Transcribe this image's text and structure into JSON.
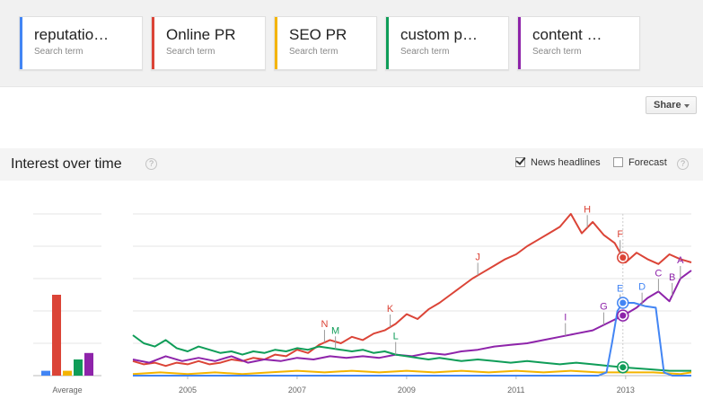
{
  "terms": [
    {
      "label": "reputatio…",
      "sub": "Search term",
      "color": "#4285f4"
    },
    {
      "label": "Online PR",
      "sub": "Search term",
      "color": "#db4437"
    },
    {
      "label": "SEO PR",
      "sub": "Search term",
      "color": "#f4b400"
    },
    {
      "label": "custom p…",
      "sub": "Search term",
      "color": "#0f9d58"
    },
    {
      "label": "content …",
      "sub": "Search term",
      "color": "#8e24aa"
    }
  ],
  "share": {
    "label": "Share"
  },
  "interest": {
    "title": "Interest over time",
    "help_glyph": "?",
    "news_headlines_label": "News headlines",
    "news_headlines_checked": true,
    "forecast_label": "Forecast",
    "forecast_checked": false
  },
  "chart_data": {
    "type": "line",
    "x_ticks": [
      2005,
      2007,
      2009,
      2011,
      2013
    ],
    "average_label": "Average",
    "ylim": [
      0,
      100
    ],
    "grid": true,
    "average_bars": [
      {
        "name": "reputatio…",
        "color": "#4285f4",
        "value": 3
      },
      {
        "name": "Online PR",
        "color": "#db4437",
        "value": 50
      },
      {
        "name": "SEO PR",
        "color": "#f4b400",
        "value": 3
      },
      {
        "name": "custom p…",
        "color": "#0f9d58",
        "value": 10
      },
      {
        "name": "content …",
        "color": "#8e24aa",
        "value": 14
      }
    ],
    "series": [
      {
        "name": "Online PR",
        "color": "#db4437",
        "points": [
          [
            2004.0,
            9
          ],
          [
            2004.2,
            7
          ],
          [
            2004.4,
            8
          ],
          [
            2004.6,
            6
          ],
          [
            2004.8,
            8
          ],
          [
            2005.0,
            7
          ],
          [
            2005.2,
            9
          ],
          [
            2005.4,
            7
          ],
          [
            2005.6,
            8
          ],
          [
            2005.8,
            10
          ],
          [
            2006.0,
            9
          ],
          [
            2006.2,
            11
          ],
          [
            2006.4,
            10
          ],
          [
            2006.6,
            13
          ],
          [
            2006.8,
            12
          ],
          [
            2007.0,
            16
          ],
          [
            2007.2,
            14
          ],
          [
            2007.4,
            19
          ],
          [
            2007.6,
            22
          ],
          [
            2007.8,
            20
          ],
          [
            2008.0,
            24
          ],
          [
            2008.2,
            22
          ],
          [
            2008.4,
            26
          ],
          [
            2008.6,
            28
          ],
          [
            2008.8,
            32
          ],
          [
            2009.0,
            38
          ],
          [
            2009.2,
            35
          ],
          [
            2009.4,
            41
          ],
          [
            2009.6,
            45
          ],
          [
            2009.8,
            50
          ],
          [
            2010.0,
            55
          ],
          [
            2010.2,
            60
          ],
          [
            2010.4,
            64
          ],
          [
            2010.6,
            68
          ],
          [
            2010.8,
            72
          ],
          [
            2011.0,
            75
          ],
          [
            2011.2,
            80
          ],
          [
            2011.4,
            84
          ],
          [
            2011.6,
            88
          ],
          [
            2011.8,
            92
          ],
          [
            2012.0,
            100
          ],
          [
            2012.2,
            88
          ],
          [
            2012.4,
            95
          ],
          [
            2012.6,
            87
          ],
          [
            2012.8,
            82
          ],
          [
            2013.0,
            70
          ],
          [
            2013.2,
            76
          ],
          [
            2013.4,
            72
          ],
          [
            2013.6,
            69
          ],
          [
            2013.8,
            75
          ],
          [
            2014.0,
            72
          ],
          [
            2014.2,
            70
          ]
        ]
      },
      {
        "name": "content …",
        "color": "#8e24aa",
        "points": [
          [
            2004.0,
            10
          ],
          [
            2004.3,
            8
          ],
          [
            2004.6,
            12
          ],
          [
            2004.9,
            9
          ],
          [
            2005.2,
            11
          ],
          [
            2005.5,
            9
          ],
          [
            2005.8,
            12
          ],
          [
            2006.1,
            8
          ],
          [
            2006.4,
            10
          ],
          [
            2006.7,
            9
          ],
          [
            2007.0,
            11
          ],
          [
            2007.3,
            10
          ],
          [
            2007.6,
            12
          ],
          [
            2007.9,
            11
          ],
          [
            2008.2,
            12
          ],
          [
            2008.5,
            11
          ],
          [
            2008.8,
            13
          ],
          [
            2009.1,
            12
          ],
          [
            2009.4,
            14
          ],
          [
            2009.7,
            13
          ],
          [
            2010.0,
            15
          ],
          [
            2010.3,
            16
          ],
          [
            2010.6,
            18
          ],
          [
            2010.9,
            19
          ],
          [
            2011.2,
            20
          ],
          [
            2011.5,
            22
          ],
          [
            2011.8,
            24
          ],
          [
            2012.1,
            26
          ],
          [
            2012.4,
            28
          ],
          [
            2012.7,
            33
          ],
          [
            2013.0,
            38
          ],
          [
            2013.2,
            42
          ],
          [
            2013.4,
            48
          ],
          [
            2013.6,
            52
          ],
          [
            2013.8,
            46
          ],
          [
            2014.0,
            60
          ],
          [
            2014.2,
            65
          ]
        ]
      },
      {
        "name": "custom p…",
        "color": "#0f9d58",
        "points": [
          [
            2004.0,
            25
          ],
          [
            2004.2,
            20
          ],
          [
            2004.4,
            18
          ],
          [
            2004.6,
            22
          ],
          [
            2004.8,
            17
          ],
          [
            2005.0,
            15
          ],
          [
            2005.2,
            18
          ],
          [
            2005.4,
            16
          ],
          [
            2005.6,
            14
          ],
          [
            2005.8,
            15
          ],
          [
            2006.0,
            13
          ],
          [
            2006.2,
            15
          ],
          [
            2006.4,
            14
          ],
          [
            2006.6,
            16
          ],
          [
            2006.8,
            15
          ],
          [
            2007.0,
            17
          ],
          [
            2007.2,
            16
          ],
          [
            2007.4,
            18
          ],
          [
            2007.6,
            17
          ],
          [
            2007.8,
            16
          ],
          [
            2008.0,
            15
          ],
          [
            2008.2,
            16
          ],
          [
            2008.4,
            14
          ],
          [
            2008.6,
            15
          ],
          [
            2008.8,
            13
          ],
          [
            2009.0,
            12
          ],
          [
            2009.2,
            11
          ],
          [
            2009.4,
            10
          ],
          [
            2009.6,
            11
          ],
          [
            2009.8,
            10
          ],
          [
            2010.0,
            9
          ],
          [
            2010.3,
            10
          ],
          [
            2010.6,
            9
          ],
          [
            2010.9,
            8
          ],
          [
            2011.2,
            9
          ],
          [
            2011.5,
            8
          ],
          [
            2011.8,
            7
          ],
          [
            2012.1,
            8
          ],
          [
            2012.4,
            7
          ],
          [
            2012.7,
            6
          ],
          [
            2013.0,
            5
          ],
          [
            2013.4,
            4
          ],
          [
            2013.8,
            3
          ],
          [
            2014.2,
            3
          ]
        ]
      },
      {
        "name": "SEO PR",
        "color": "#f4b400",
        "points": [
          [
            2004.0,
            1
          ],
          [
            2004.5,
            2
          ],
          [
            2005.0,
            1
          ],
          [
            2005.5,
            2
          ],
          [
            2006.0,
            1
          ],
          [
            2006.5,
            2
          ],
          [
            2007.0,
            3
          ],
          [
            2007.5,
            2
          ],
          [
            2008.0,
            3
          ],
          [
            2008.5,
            2
          ],
          [
            2009.0,
            3
          ],
          [
            2009.5,
            2
          ],
          [
            2010.0,
            3
          ],
          [
            2010.5,
            2
          ],
          [
            2011.0,
            3
          ],
          [
            2011.5,
            2
          ],
          [
            2012.0,
            3
          ],
          [
            2012.5,
            2
          ],
          [
            2013.0,
            2
          ],
          [
            2013.5,
            2
          ],
          [
            2014.0,
            1
          ],
          [
            2014.2,
            2
          ]
        ]
      },
      {
        "name": "reputatio…",
        "color": "#4285f4",
        "points": [
          [
            2004.0,
            0
          ],
          [
            2012.5,
            0
          ],
          [
            2012.65,
            2
          ],
          [
            2012.75,
            20
          ],
          [
            2012.85,
            40
          ],
          [
            2012.95,
            45
          ],
          [
            2013.15,
            45
          ],
          [
            2013.35,
            43
          ],
          [
            2013.55,
            42
          ],
          [
            2013.7,
            2
          ],
          [
            2013.85,
            0
          ],
          [
            2014.2,
            0
          ]
        ]
      }
    ],
    "annotations": [
      {
        "letter": "N",
        "x": 2007.5,
        "series": "Online PR"
      },
      {
        "letter": "K",
        "x": 2008.7,
        "series": "Online PR"
      },
      {
        "letter": "J",
        "x": 2010.3,
        "series": "Online PR"
      },
      {
        "letter": "H",
        "x": 2012.3,
        "series": "Online PR"
      },
      {
        "letter": "F",
        "x": 2012.9,
        "series": "Online PR"
      },
      {
        "letter": "M",
        "x": 2007.7,
        "series": "custom p…"
      },
      {
        "letter": "L",
        "x": 2008.8,
        "series": "custom p…"
      },
      {
        "letter": "I",
        "x": 2011.9,
        "series": "content …"
      },
      {
        "letter": "G",
        "x": 2012.6,
        "series": "content …"
      },
      {
        "letter": "E",
        "x": 2012.9,
        "series": "reputatio…"
      },
      {
        "letter": "D",
        "x": 2013.3,
        "series": "reputatio…"
      },
      {
        "letter": "C",
        "x": 2013.6,
        "series": "content …"
      },
      {
        "letter": "B",
        "x": 2013.85,
        "series": "content …"
      },
      {
        "letter": "A",
        "x": 2014.0,
        "series": "content …"
      }
    ],
    "highlight_x": 2012.95
  }
}
